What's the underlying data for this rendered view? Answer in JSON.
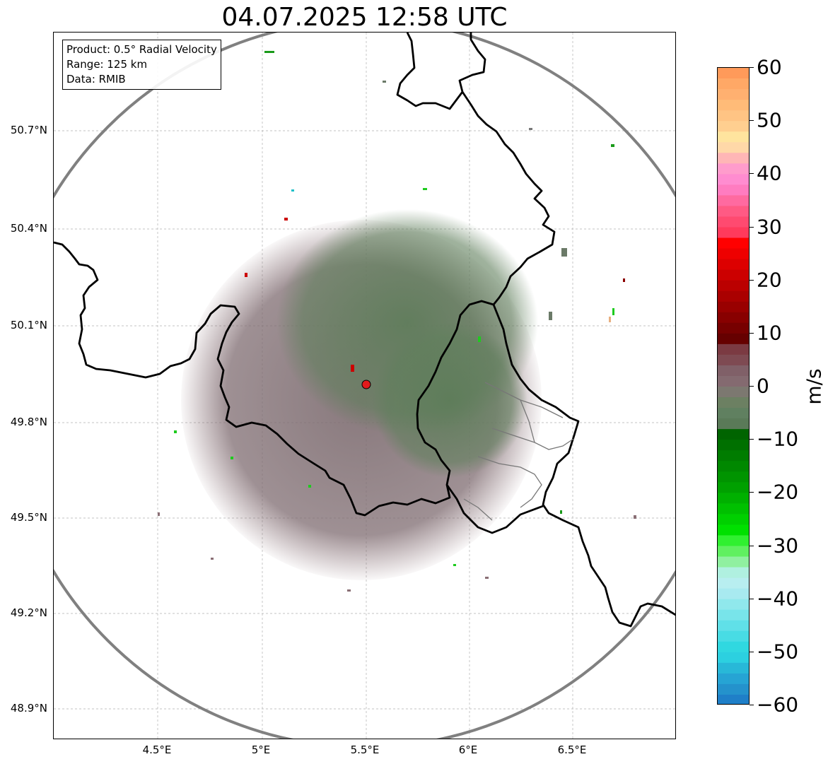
{
  "title": "04.07.2025 12:58 UTC",
  "info": {
    "product": "Product: 0.5° Radial Velocity",
    "range": "Range: 125 km",
    "source": "Data: RMIB"
  },
  "lat_ticks": [
    "50.7°N",
    "50.4°N",
    "50.1°N",
    "49.8°N",
    "49.5°N",
    "49.2°N",
    "48.9°N"
  ],
  "lon_ticks": [
    "4.5°E",
    "5°E",
    "5.5°E",
    "6°E",
    "6.5°E"
  ],
  "colorbar": {
    "label": "m/s",
    "ticks": [
      "60",
      "50",
      "40",
      "30",
      "20",
      "10",
      "0",
      "−10",
      "−20",
      "−30",
      "−40",
      "−50",
      "−60"
    ],
    "range": [
      -60,
      60
    ]
  },
  "colors": {
    "range_ring": "#808080",
    "border": "#000000",
    "radar_site": "#e31a1c"
  }
}
